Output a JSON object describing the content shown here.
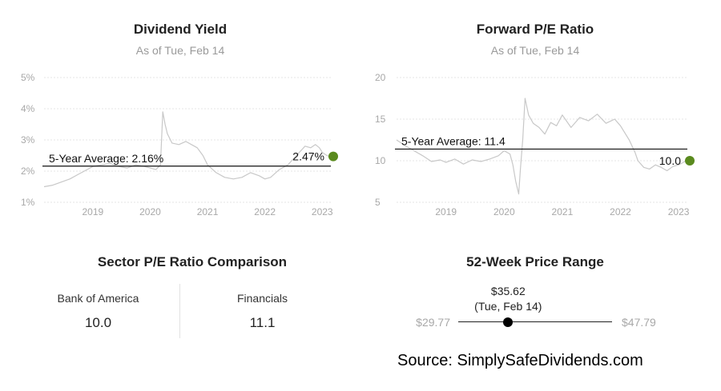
{
  "colors": {
    "line": "#c8c8c8",
    "avg_line": "#111111",
    "current_dot": "#5a8a1e",
    "grid": "#e6e6e6",
    "axis_text": "#a8a8a8"
  },
  "chart_data": [
    {
      "type": "line",
      "title": "Dividend Yield",
      "subtitle": "As of Tue, Feb 14",
      "y_ticks": [
        "5%",
        "4%",
        "3%",
        "2%",
        "1%"
      ],
      "y_tick_values": [
        5,
        4,
        3,
        2,
        1
      ],
      "ylim": [
        1,
        5
      ],
      "x_ticks": [
        "2019",
        "2020",
        "2021",
        "2022",
        "2023"
      ],
      "x_tick_values": [
        2019,
        2020,
        2021,
        2022,
        2023
      ],
      "xlim": [
        2018.15,
        2023.15
      ],
      "series": [
        {
          "x": [
            2018.15,
            2018.3,
            2018.45,
            2018.6,
            2018.75,
            2018.9,
            2019.0,
            2019.15,
            2019.3,
            2019.45,
            2019.6,
            2019.75,
            2019.9,
            2020.0,
            2020.1,
            2020.18,
            2020.22,
            2020.26,
            2020.3,
            2020.38,
            2020.5,
            2020.62,
            2020.72,
            2020.82,
            2020.92,
            2021.0,
            2021.15,
            2021.3,
            2021.45,
            2021.6,
            2021.75,
            2021.9,
            2022.0,
            2022.1,
            2022.25,
            2022.4,
            2022.5,
            2022.6,
            2022.7,
            2022.8,
            2022.88,
            2022.95,
            2023.0,
            2023.08,
            2023.12
          ],
          "y": [
            1.5,
            1.55,
            1.65,
            1.75,
            1.9,
            2.05,
            2.15,
            2.2,
            2.25,
            2.15,
            2.1,
            2.2,
            2.15,
            2.1,
            2.05,
            2.2,
            3.9,
            3.5,
            3.2,
            2.9,
            2.85,
            2.95,
            2.85,
            2.75,
            2.5,
            2.2,
            1.95,
            1.8,
            1.75,
            1.8,
            1.95,
            1.85,
            1.75,
            1.8,
            2.05,
            2.2,
            2.4,
            2.6,
            2.8,
            2.75,
            2.85,
            2.75,
            2.6,
            2.5,
            2.47
          ]
        }
      ],
      "average": {
        "label": "5-Year Average: 2.16%",
        "value": 2.16
      },
      "current": {
        "label": "2.47%",
        "value": 2.47
      }
    },
    {
      "type": "line",
      "title": "Forward P/E Ratio",
      "subtitle": "As of Tue, Feb 14",
      "y_ticks": [
        "20",
        "15",
        "10",
        "5"
      ],
      "y_tick_values": [
        20,
        15,
        10,
        5
      ],
      "ylim": [
        5,
        20
      ],
      "x_ticks": [
        "2019",
        "2020",
        "2021",
        "2022",
        "2023"
      ],
      "x_tick_values": [
        2019,
        2020,
        2021,
        2022,
        2023
      ],
      "xlim": [
        2018.15,
        2023.15
      ],
      "series": [
        {
          "x": [
            2018.15,
            2018.3,
            2018.45,
            2018.6,
            2018.75,
            2018.9,
            2019.0,
            2019.15,
            2019.3,
            2019.45,
            2019.6,
            2019.75,
            2019.9,
            2020.0,
            2020.1,
            2020.15,
            2020.2,
            2020.25,
            2020.28,
            2020.32,
            2020.36,
            2020.42,
            2020.5,
            2020.6,
            2020.7,
            2020.8,
            2020.9,
            2021.0,
            2021.15,
            2021.3,
            2021.45,
            2021.6,
            2021.75,
            2021.9,
            2022.0,
            2022.15,
            2022.25,
            2022.3,
            2022.4,
            2022.5,
            2022.6,
            2022.7,
            2022.8,
            2022.9,
            2023.0,
            2023.08,
            2023.12
          ],
          "y": [
            12.5,
            11.8,
            11.2,
            10.6,
            9.9,
            10.1,
            9.8,
            10.2,
            9.6,
            10.1,
            9.9,
            10.2,
            10.6,
            11.2,
            10.8,
            9.5,
            7.5,
            6.0,
            9.0,
            12.5,
            17.5,
            15.5,
            14.5,
            14.0,
            13.2,
            14.6,
            14.2,
            15.5,
            14.0,
            15.2,
            14.8,
            15.6,
            14.5,
            15.0,
            14.2,
            12.5,
            11.0,
            10.0,
            9.2,
            9.0,
            9.5,
            9.2,
            8.8,
            9.3,
            9.5,
            9.8,
            10.0
          ]
        }
      ],
      "average": {
        "label": "5-Year Average: 11.4",
        "value": 11.4
      },
      "current": {
        "label": "10.0",
        "value": 10.0
      }
    }
  ],
  "sector": {
    "title": "Sector P/E Ratio Comparison",
    "company_label": "Bank of America",
    "company_value": "10.0",
    "sector_label": "Financials",
    "sector_value": "11.1"
  },
  "range": {
    "title": "52-Week Price Range",
    "current_price": "$35.62",
    "current_date": "(Tue, Feb 14)",
    "low_label": "$29.77",
    "high_label": "$47.79",
    "low": 29.77,
    "high": 47.79,
    "current": 35.62
  },
  "source": "Source: SimplySafeDividends.com"
}
